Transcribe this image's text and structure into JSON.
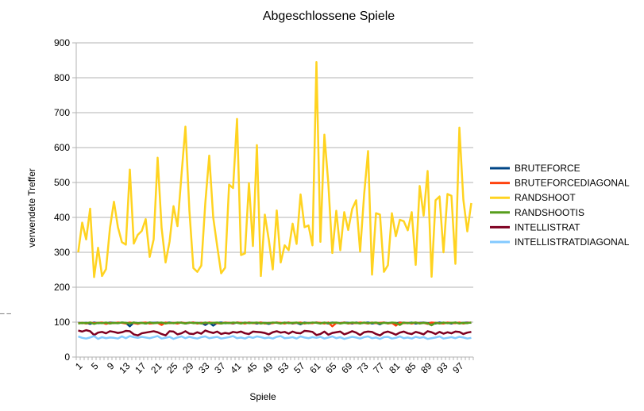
{
  "chart_data": {
    "type": "line",
    "title": "Abgeschlossene Spiele",
    "xlabel": "Spiele",
    "ylabel": "verwendete Treffer",
    "ylim": [
      0,
      900
    ],
    "y_ticks": [
      0,
      100,
      200,
      300,
      400,
      500,
      600,
      700,
      800,
      900
    ],
    "x_tick_labels": [
      "1",
      "5",
      "9",
      "13",
      "17",
      "21",
      "25",
      "29",
      "33",
      "37",
      "41",
      "45",
      "49",
      "53",
      "57",
      "61",
      "65",
      "69",
      "73",
      "77",
      "81",
      "85",
      "89",
      "93",
      "97"
    ],
    "grid": "horizontal",
    "legend_position": "right",
    "x": [
      1,
      2,
      3,
      4,
      5,
      6,
      7,
      8,
      9,
      10,
      11,
      12,
      13,
      14,
      15,
      16,
      17,
      18,
      19,
      20,
      21,
      22,
      23,
      24,
      25,
      26,
      27,
      28,
      29,
      30,
      31,
      32,
      33,
      34,
      35,
      36,
      37,
      38,
      39,
      40,
      41,
      42,
      43,
      44,
      45,
      46,
      47,
      48,
      49,
      50,
      51,
      52,
      53,
      54,
      55,
      56,
      57,
      58,
      59,
      60,
      61,
      62,
      63,
      64,
      65,
      66,
      67,
      68,
      69,
      70,
      71,
      72,
      73,
      74,
      75,
      76,
      77,
      78,
      79,
      80,
      81,
      82,
      83,
      84,
      85,
      86,
      87,
      88,
      89,
      90,
      91,
      92,
      93,
      94,
      95,
      96,
      97,
      98,
      99,
      100
    ],
    "series": [
      {
        "name": "BRUTEFORCE",
        "color": "#004586",
        "values": [
          98,
          97,
          98,
          95,
          99,
          97,
          98,
          96,
          99,
          98,
          97,
          99,
          98,
          88,
          99,
          97,
          98,
          96,
          99,
          98,
          99,
          97,
          98,
          99,
          97,
          98,
          99,
          96,
          98,
          99,
          97,
          98,
          92,
          99,
          90,
          98,
          99,
          97,
          98,
          96,
          99,
          98,
          97,
          99,
          98,
          96,
          99,
          97,
          95,
          98,
          99,
          97,
          98,
          99,
          96,
          98,
          94,
          99,
          97,
          98,
          99,
          97,
          98,
          96,
          99,
          98,
          97,
          99,
          98,
          96,
          99,
          97,
          98,
          99,
          96,
          98,
          94,
          99,
          97,
          98,
          96,
          99,
          98,
          97,
          99,
          96,
          98,
          99,
          97,
          98,
          96,
          99,
          97,
          98,
          96,
          99,
          97,
          98,
          99,
          98
        ]
      },
      {
        "name": "BRUTEFORCEDIAGONAL",
        "color": "#ff420e",
        "values": [
          97,
          98,
          96,
          99,
          97,
          98,
          99,
          95,
          98,
          97,
          99,
          98,
          96,
          99,
          97,
          95,
          98,
          99,
          96,
          97,
          98,
          92,
          99,
          97,
          98,
          96,
          99,
          97,
          98,
          99,
          96,
          98,
          97,
          99,
          98,
          97,
          96,
          99,
          98,
          97,
          99,
          98,
          96,
          99,
          97,
          98,
          99,
          96,
          98,
          97,
          99,
          98,
          96,
          99,
          97,
          98,
          99,
          96,
          98,
          97,
          99,
          98,
          96,
          99,
          88,
          98,
          97,
          99,
          96,
          98,
          97,
          99,
          98,
          96,
          99,
          97,
          98,
          99,
          96,
          98,
          90,
          99,
          97,
          98,
          96,
          99,
          97,
          98,
          95,
          99,
          98,
          97,
          96,
          99,
          98,
          97,
          99,
          96,
          98,
          99
        ]
      },
      {
        "name": "RANDSHOOT",
        "color": "#ffd320",
        "values": [
          300,
          385,
          337,
          425,
          229,
          313,
          232,
          252,
          370,
          445,
          372,
          329,
          322,
          537,
          325,
          350,
          361,
          395,
          287,
          337,
          571,
          370,
          271,
          330,
          432,
          375,
          520,
          660,
          420,
          255,
          244,
          262,
          440,
          577,
          400,
          318,
          240,
          256,
          494,
          484,
          682,
          292,
          297,
          498,
          318,
          607,
          232,
          408,
          336,
          251,
          420,
          271,
          320,
          306,
          382,
          324,
          466,
          372,
          377,
          320,
          845,
          330,
          637,
          496,
          298,
          419,
          306,
          415,
          364,
          424,
          449,
          302,
          464,
          590,
          236,
          412,
          408,
          244,
          263,
          412,
          346,
          393,
          389,
          363,
          415,
          264,
          490,
          405,
          533,
          230,
          449,
          460,
          300,
          467,
          462,
          267,
          657,
          451,
          360,
          441
        ]
      },
      {
        "name": "RANDSHOOTIS",
        "color": "#579d1c",
        "values": [
          96,
          98,
          97,
          99,
          95,
          98,
          97,
          99,
          96,
          98,
          97,
          99,
          98,
          96,
          99,
          97,
          98,
          96,
          99,
          97,
          98,
          99,
          96,
          98,
          97,
          99,
          98,
          96,
          99,
          97,
          98,
          96,
          99,
          97,
          98,
          99,
          96,
          98,
          97,
          99,
          98,
          96,
          99,
          97,
          98,
          99,
          96,
          98,
          97,
          99,
          98,
          96,
          99,
          97,
          98,
          99,
          96,
          98,
          97,
          99,
          98,
          96,
          99,
          97,
          98,
          99,
          96,
          98,
          97,
          99,
          98,
          96,
          99,
          97,
          98,
          99,
          96,
          98,
          97,
          99,
          98,
          92,
          99,
          97,
          98,
          99,
          96,
          98,
          97,
          91,
          98,
          96,
          99,
          97,
          98,
          99,
          96,
          98,
          97,
          99
        ]
      },
      {
        "name": "INTELLISTRAT",
        "color": "#7e0021",
        "values": [
          76,
          73,
          77,
          74,
          63,
          70,
          72,
          68,
          74,
          72,
          69,
          71,
          75,
          74,
          65,
          62,
          68,
          70,
          72,
          74,
          71,
          66,
          62,
          74,
          73,
          65,
          68,
          74,
          67,
          66,
          71,
          67,
          76,
          72,
          69,
          73,
          66,
          69,
          67,
          72,
          70,
          73,
          68,
          66,
          73,
          72,
          71,
          69,
          65,
          71,
          74,
          70,
          72,
          67,
          73,
          69,
          68,
          75,
          74,
          72,
          63,
          66,
          73,
          64,
          69,
          71,
          73,
          65,
          69,
          74,
          70,
          63,
          71,
          73,
          72,
          66,
          62,
          70,
          73,
          69,
          64,
          70,
          73,
          68,
          66,
          72,
          69,
          65,
          74,
          71,
          66,
          72,
          67,
          71,
          68,
          73,
          72,
          66,
          70,
          72
        ]
      },
      {
        "name": "INTELLISTRATDIAGONAL",
        "color": "#83caff",
        "values": [
          59,
          55,
          53,
          56,
          60,
          52,
          57,
          54,
          56,
          55,
          53,
          59,
          54,
          60,
          57,
          55,
          58,
          56,
          54,
          57,
          60,
          53,
          55,
          58,
          52,
          56,
          59,
          54,
          58,
          55,
          53,
          57,
          59,
          54,
          56,
          58,
          53,
          55,
          57,
          60,
          54,
          56,
          53,
          58,
          55,
          59,
          57,
          54,
          56,
          53,
          58,
          60,
          54,
          55,
          57,
          53,
          59,
          56,
          54,
          57,
          55,
          58,
          53,
          56,
          59,
          54,
          57,
          52,
          55,
          58,
          56,
          53,
          57,
          59,
          54,
          56,
          52,
          57,
          58,
          53,
          55,
          59,
          54,
          56,
          53,
          58,
          55,
          57,
          52,
          54,
          56,
          59,
          53,
          55,
          57,
          54,
          58,
          56,
          53,
          55
        ]
      }
    ]
  },
  "stray_text": "– –"
}
